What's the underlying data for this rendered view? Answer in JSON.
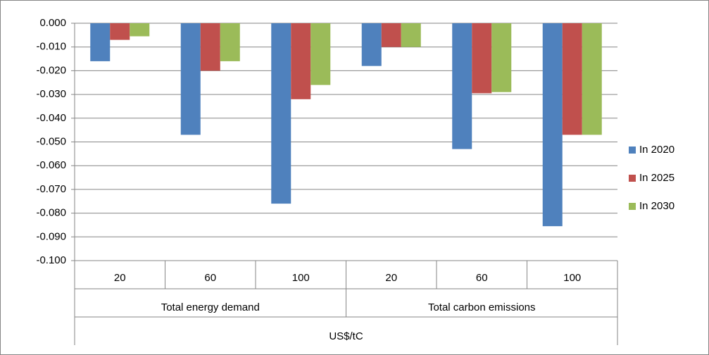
{
  "chart_data": {
    "type": "bar",
    "category_groups": [
      {
        "name": "Total energy demand",
        "categories": [
          "20",
          "60",
          "100"
        ]
      },
      {
        "name": "Total carbon emissions",
        "categories": [
          "20",
          "60",
          "100"
        ]
      }
    ],
    "xlabel": "US$/tC",
    "series": [
      {
        "name": "In 2020",
        "color": "#4f81bd",
        "values": [
          -0.016,
          -0.047,
          -0.076,
          -0.018,
          -0.053,
          -0.0855
        ]
      },
      {
        "name": "In 2025",
        "color": "#c0504d",
        "values": [
          -0.007,
          -0.02,
          -0.032,
          -0.01,
          -0.0295,
          -0.047
        ]
      },
      {
        "name": "In 2030",
        "color": "#9bbb59",
        "values": [
          -0.0055,
          -0.016,
          -0.026,
          -0.01,
          -0.029,
          -0.047
        ]
      }
    ],
    "ylim": [
      -0.1,
      0
    ],
    "yticks": [
      {
        "value": 0,
        "label": "0.000"
      },
      {
        "value": -0.01,
        "label": "-0.010"
      },
      {
        "value": -0.02,
        "label": "-0.020"
      },
      {
        "value": -0.03,
        "label": "-0.030"
      },
      {
        "value": -0.04,
        "label": "-0.040"
      },
      {
        "value": -0.05,
        "label": "-0.050"
      },
      {
        "value": -0.06,
        "label": "-0.060"
      },
      {
        "value": -0.07,
        "label": "-0.070"
      },
      {
        "value": -0.08,
        "label": "-0.080"
      },
      {
        "value": -0.09,
        "label": "-0.090"
      },
      {
        "value": -0.1,
        "label": "-0.100"
      }
    ],
    "grid": true,
    "legend": "right"
  }
}
